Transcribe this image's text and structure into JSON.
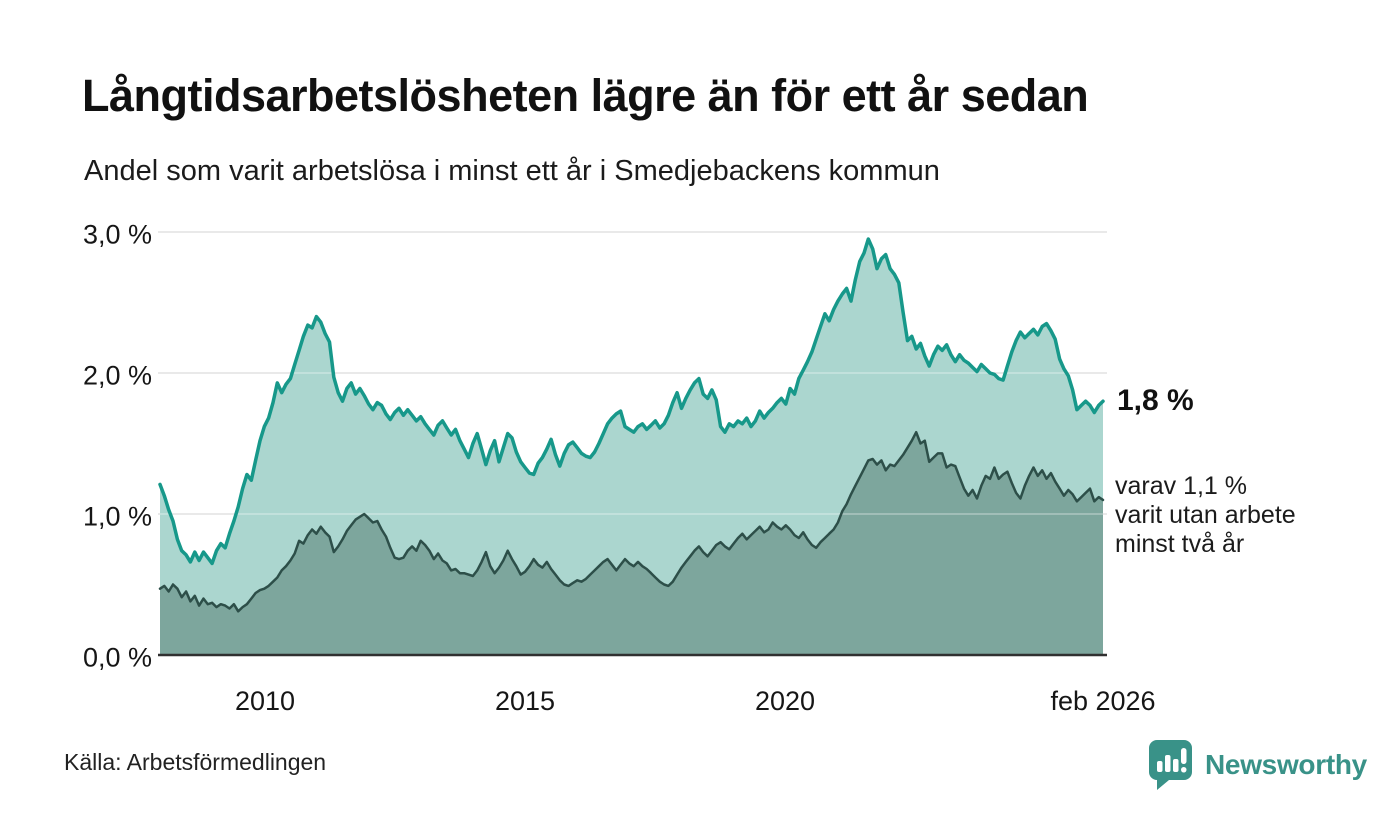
{
  "chart_data": {
    "type": "area",
    "title": "Långtidsarbetslösheten lägre än för ett år sedan",
    "subtitle": "Andel som varit arbetslösa i minst ett år i Smedjebackens kommun",
    "unit": "%",
    "grid": true,
    "grid_color": "#e1e1e1",
    "baseline_color": "#303030",
    "x_axis": {
      "ticks": [
        "2010",
        "2015",
        "2020",
        "feb 2026"
      ],
      "tick_years": [
        2010,
        2015,
        2020,
        2026.083
      ]
    },
    "y_axis": {
      "ticks": [
        "3,0 %",
        "2,0 %",
        "1,0 %",
        "0,0 %"
      ],
      "tick_values": [
        3,
        2,
        1,
        0
      ],
      "ylim": [
        0,
        3.1
      ]
    },
    "x_start_year": 2008.0,
    "x_end_year": 2026.083,
    "x_step_months": 1,
    "series": [
      {
        "name": "Arbetslösa minst ett år",
        "line_color": "#17988a",
        "fill_color": "#abd6cf",
        "line_width": 3.5,
        "end_value_label": "1,8 %",
        "values": [
          1.21,
          1.13,
          1.03,
          0.95,
          0.82,
          0.74,
          0.71,
          0.66,
          0.73,
          0.67,
          0.73,
          0.69,
          0.65,
          0.74,
          0.79,
          0.76,
          0.86,
          0.95,
          1.05,
          1.18,
          1.28,
          1.24,
          1.38,
          1.52,
          1.62,
          1.68,
          1.79,
          1.93,
          1.86,
          1.92,
          1.96,
          2.06,
          2.16,
          2.26,
          2.34,
          2.32,
          2.4,
          2.36,
          2.28,
          2.22,
          1.97,
          1.86,
          1.8,
          1.89,
          1.93,
          1.85,
          1.89,
          1.84,
          1.78,
          1.74,
          1.79,
          1.77,
          1.71,
          1.67,
          1.72,
          1.75,
          1.7,
          1.74,
          1.7,
          1.66,
          1.69,
          1.64,
          1.6,
          1.56,
          1.63,
          1.66,
          1.61,
          1.56,
          1.6,
          1.52,
          1.46,
          1.4,
          1.5,
          1.57,
          1.46,
          1.35,
          1.45,
          1.52,
          1.37,
          1.47,
          1.57,
          1.54,
          1.44,
          1.37,
          1.33,
          1.29,
          1.28,
          1.36,
          1.4,
          1.46,
          1.53,
          1.42,
          1.34,
          1.43,
          1.49,
          1.51,
          1.47,
          1.43,
          1.41,
          1.4,
          1.44,
          1.5,
          1.57,
          1.64,
          1.68,
          1.71,
          1.73,
          1.62,
          1.6,
          1.58,
          1.62,
          1.64,
          1.6,
          1.63,
          1.66,
          1.61,
          1.64,
          1.7,
          1.79,
          1.86,
          1.75,
          1.82,
          1.88,
          1.93,
          1.96,
          1.85,
          1.82,
          1.88,
          1.81,
          1.62,
          1.58,
          1.64,
          1.62,
          1.66,
          1.64,
          1.68,
          1.62,
          1.66,
          1.73,
          1.68,
          1.72,
          1.75,
          1.79,
          1.82,
          1.78,
          1.89,
          1.85,
          1.96,
          2.02,
          2.08,
          2.15,
          2.24,
          2.33,
          2.42,
          2.37,
          2.45,
          2.51,
          2.56,
          2.6,
          2.51,
          2.66,
          2.79,
          2.85,
          2.95,
          2.88,
          2.74,
          2.81,
          2.84,
          2.74,
          2.7,
          2.64,
          2.43,
          2.23,
          2.26,
          2.17,
          2.21,
          2.12,
          2.05,
          2.13,
          2.19,
          2.16,
          2.2,
          2.13,
          2.08,
          2.13,
          2.09,
          2.07,
          2.04,
          2.01,
          2.06,
          2.03,
          2.0,
          1.99,
          1.96,
          1.95,
          2.05,
          2.15,
          2.23,
          2.29,
          2.25,
          2.28,
          2.31,
          2.27,
          2.33,
          2.35,
          2.3,
          2.24,
          2.1,
          2.03,
          1.98,
          1.88,
          1.74,
          1.77,
          1.8,
          1.77,
          1.72,
          1.77,
          1.8
        ]
      },
      {
        "name": "Arbetslösa minst två år",
        "line_color": "#2d4f49",
        "fill_color": "#7da69d",
        "line_width": 2.5,
        "end_value_label": "varav 1,1 %",
        "values": [
          0.47,
          0.49,
          0.45,
          0.5,
          0.47,
          0.41,
          0.45,
          0.38,
          0.42,
          0.35,
          0.4,
          0.36,
          0.37,
          0.34,
          0.36,
          0.35,
          0.33,
          0.36,
          0.31,
          0.34,
          0.36,
          0.4,
          0.44,
          0.46,
          0.47,
          0.49,
          0.52,
          0.55,
          0.6,
          0.63,
          0.67,
          0.72,
          0.81,
          0.79,
          0.85,
          0.89,
          0.86,
          0.91,
          0.87,
          0.84,
          0.73,
          0.77,
          0.82,
          0.88,
          0.92,
          0.96,
          0.98,
          1.0,
          0.97,
          0.94,
          0.95,
          0.89,
          0.84,
          0.76,
          0.69,
          0.68,
          0.69,
          0.74,
          0.77,
          0.74,
          0.81,
          0.78,
          0.74,
          0.68,
          0.72,
          0.67,
          0.65,
          0.6,
          0.61,
          0.58,
          0.58,
          0.57,
          0.56,
          0.6,
          0.66,
          0.73,
          0.63,
          0.58,
          0.62,
          0.67,
          0.74,
          0.68,
          0.63,
          0.57,
          0.59,
          0.63,
          0.68,
          0.64,
          0.62,
          0.66,
          0.61,
          0.57,
          0.53,
          0.5,
          0.49,
          0.51,
          0.53,
          0.52,
          0.54,
          0.57,
          0.6,
          0.63,
          0.66,
          0.68,
          0.64,
          0.6,
          0.64,
          0.68,
          0.65,
          0.63,
          0.66,
          0.63,
          0.61,
          0.58,
          0.55,
          0.52,
          0.5,
          0.49,
          0.52,
          0.57,
          0.62,
          0.66,
          0.7,
          0.74,
          0.77,
          0.73,
          0.7,
          0.74,
          0.78,
          0.8,
          0.77,
          0.75,
          0.79,
          0.83,
          0.86,
          0.82,
          0.85,
          0.88,
          0.91,
          0.87,
          0.89,
          0.94,
          0.91,
          0.89,
          0.92,
          0.89,
          0.85,
          0.83,
          0.87,
          0.82,
          0.78,
          0.76,
          0.8,
          0.83,
          0.86,
          0.89,
          0.94,
          1.02,
          1.07,
          1.14,
          1.2,
          1.26,
          1.32,
          1.38,
          1.39,
          1.35,
          1.38,
          1.31,
          1.35,
          1.34,
          1.38,
          1.42,
          1.47,
          1.52,
          1.58,
          1.5,
          1.52,
          1.37,
          1.4,
          1.43,
          1.43,
          1.33,
          1.35,
          1.34,
          1.26,
          1.18,
          1.13,
          1.17,
          1.11,
          1.2,
          1.27,
          1.25,
          1.33,
          1.25,
          1.28,
          1.3,
          1.22,
          1.15,
          1.11,
          1.2,
          1.27,
          1.33,
          1.27,
          1.31,
          1.25,
          1.29,
          1.23,
          1.18,
          1.13,
          1.17,
          1.14,
          1.09,
          1.12,
          1.15,
          1.18,
          1.09,
          1.12,
          1.1
        ]
      }
    ]
  },
  "annotations": {
    "primary_value": "1,8 %",
    "secondary_lines": [
      "varav 1,1 %",
      "varit utan arbete",
      "minst två år"
    ]
  },
  "footer": {
    "source": "Källa: Arbetsförmedlingen",
    "brand_name": "Newsworthy",
    "brand_color": "#399288"
  }
}
